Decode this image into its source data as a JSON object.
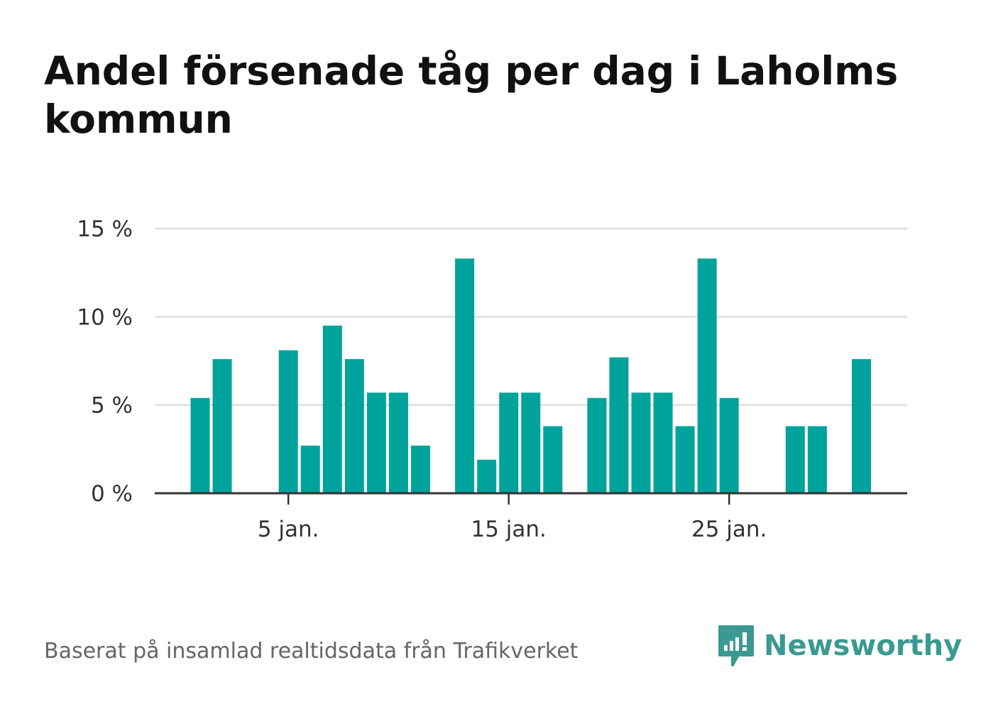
{
  "title": "Andel försenade tåg per dag i Laholms kommun",
  "source": "Baserat på insamlad realtidsdata från Trafikverket",
  "brand": {
    "name": "Newsworthy",
    "color": "#3a9a91",
    "icon": "newsworthy-logo-icon"
  },
  "colors": {
    "bar": "#00a39b",
    "grid": "#dddddd",
    "axis": "#333333",
    "tick_text": "#333333"
  },
  "chart_data": {
    "type": "bar",
    "ylabel": "",
    "xlabel": "",
    "ylim": [
      0,
      15
    ],
    "yticks": [
      {
        "value": 0,
        "label": "0 %"
      },
      {
        "value": 5,
        "label": "5 %"
      },
      {
        "value": 10,
        "label": "10 %"
      },
      {
        "value": 15,
        "label": "15 %"
      }
    ],
    "xticks": [
      {
        "day": 5,
        "label": "5 jan."
      },
      {
        "day": 15,
        "label": "15 jan."
      },
      {
        "day": 25,
        "label": "25 jan."
      }
    ],
    "grid": true,
    "categories": [
      1,
      2,
      3,
      4,
      5,
      6,
      7,
      8,
      9,
      10,
      11,
      12,
      13,
      14,
      15,
      16,
      17,
      18,
      19,
      20,
      21,
      22,
      23,
      24,
      25,
      26,
      27,
      28,
      29,
      30,
      31
    ],
    "values": [
      5.4,
      7.6,
      0,
      0,
      8.1,
      2.7,
      9.5,
      7.6,
      5.7,
      5.7,
      2.7,
      0,
      13.3,
      1.9,
      5.7,
      5.7,
      3.8,
      0,
      5.4,
      7.7,
      5.7,
      5.7,
      3.8,
      13.3,
      5.4,
      0,
      0,
      3.8,
      3.8,
      0,
      7.6
    ]
  }
}
